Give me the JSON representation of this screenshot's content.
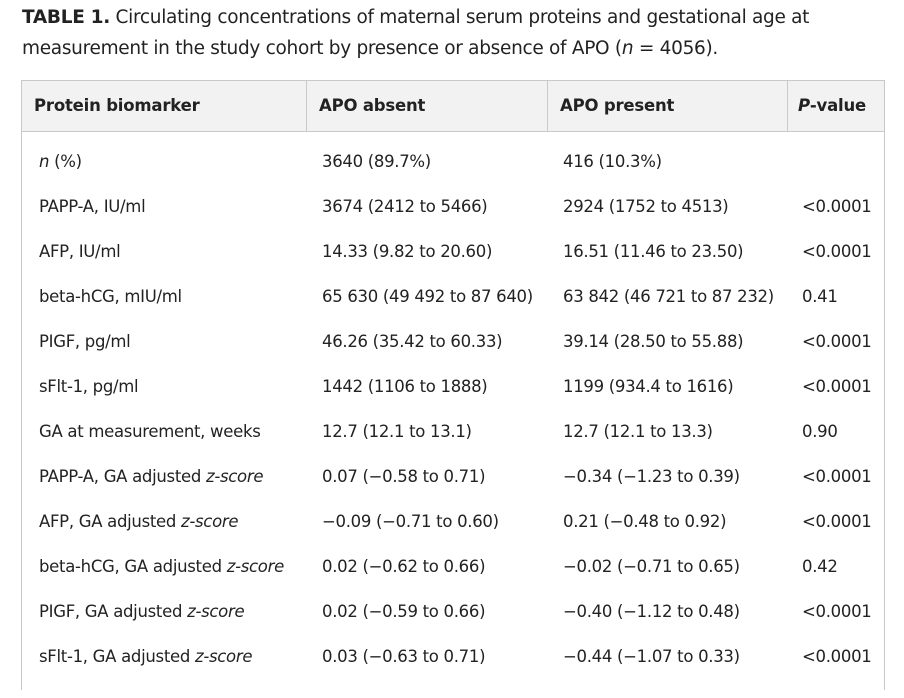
{
  "caption": {
    "label": "TABLE 1.",
    "text_before_n": " Circulating concentrations of maternal serum proteins and gestational age at measurement in the study cohort by presence or absence of APO (",
    "n_symbol": "n",
    "text_after_n": " = 4056)."
  },
  "table": {
    "headers": {
      "biomarker": "Protein biomarker",
      "absent": "APO absent",
      "present": "APO present",
      "p_italic": "P",
      "p_rest": "-value"
    },
    "rows": [
      {
        "label": "",
        "label_italic": "n",
        "label_suffix": " (%)",
        "absent": "3640 (89.7%)",
        "present": "416 (10.3%)",
        "p": ""
      },
      {
        "label": "PAPP-A, IU/ml",
        "label_italic": "",
        "label_suffix": "",
        "absent": "3674 (2412 to 5466)",
        "present": "2924 (1752 to 4513)",
        "p": "<0.0001"
      },
      {
        "label": "AFP, IU/ml",
        "label_italic": "",
        "label_suffix": "",
        "absent": "14.33 (9.82 to 20.60)",
        "present": "16.51 (11.46 to 23.50)",
        "p": "<0.0001"
      },
      {
        "label": "beta-hCG, mIU/ml",
        "label_italic": "",
        "label_suffix": "",
        "absent": "65 630 (49 492 to 87 640)",
        "present": "63 842 (46 721 to 87 232)",
        "p": "0.41"
      },
      {
        "label": "PIGF, pg/ml",
        "label_italic": "",
        "label_suffix": "",
        "absent": "46.26 (35.42 to 60.33)",
        "present": "39.14 (28.50 to 55.88)",
        "p": "<0.0001"
      },
      {
        "label": "sFlt-1, pg/ml",
        "label_italic": "",
        "label_suffix": "",
        "absent": "1442 (1106 to 1888)",
        "present": "1199 (934.4 to 1616)",
        "p": "<0.0001"
      },
      {
        "label": "GA at measurement, weeks",
        "label_italic": "",
        "label_suffix": "",
        "absent": "12.7 (12.1 to 13.1)",
        "present": "12.7 (12.1 to 13.3)",
        "p": "0.90"
      },
      {
        "label": "PAPP-A, GA adjusted ",
        "label_italic": "z-score",
        "label_suffix": "",
        "absent": "0.07 (−0.58 to 0.71)",
        "present": "−0.34 (−1.23 to 0.39)",
        "p": "<0.0001"
      },
      {
        "label": "AFP, GA adjusted ",
        "label_italic": "z-score",
        "label_suffix": "",
        "absent": "−0.09 (−0.71 to 0.60)",
        "present": "0.21 (−0.48 to 0.92)",
        "p": "<0.0001"
      },
      {
        "label": "beta-hCG, GA adjusted ",
        "label_italic": "z-score",
        "label_suffix": "",
        "absent": "0.02 (−0.62 to 0.66)",
        "present": "−0.02 (−0.71 to 0.65)",
        "p": "0.42"
      },
      {
        "label": "PIGF, GA adjusted ",
        "label_italic": "z-score",
        "label_suffix": "",
        "absent": "0.02 (−0.59 to 0.66)",
        "present": "−0.40 (−1.12 to 0.48)",
        "p": "<0.0001"
      },
      {
        "label": "sFlt-1, GA adjusted ",
        "label_italic": "z-score",
        "label_suffix": "",
        "absent": "0.03 (−0.63 to 0.71)",
        "present": "−0.44 (−1.07 to 0.33)",
        "p": "<0.0001"
      }
    ]
  }
}
